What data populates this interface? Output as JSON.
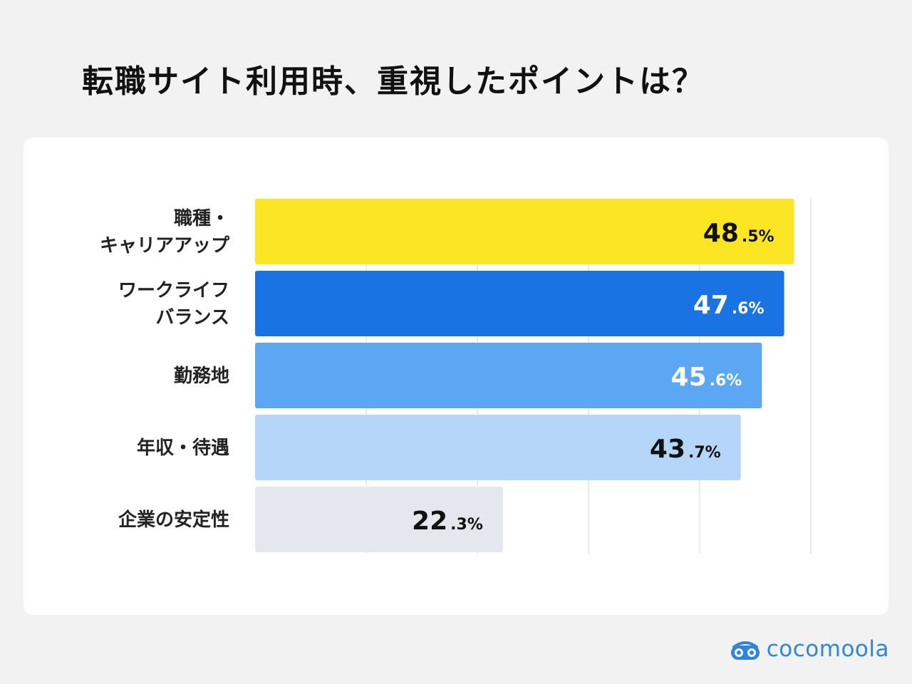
{
  "title": "転職サイト利用時、重視したポイントは？",
  "brand": {
    "name": "cocomoola",
    "icon": "cocomoola-logo-icon",
    "color": "#2f86d8"
  },
  "chart_data": {
    "type": "bar",
    "orientation": "horizontal",
    "categories": [
      [
        "職種・",
        "キャリアアップ"
      ],
      [
        "ワークライフ",
        "バランス"
      ],
      [
        "勤務地"
      ],
      [
        "年収・待遇"
      ],
      [
        "企業の安定性"
      ]
    ],
    "values": [
      48.5,
      47.6,
      45.6,
      43.7,
      22.3
    ],
    "value_labels": [
      {
        "int": "48",
        "dec": ".5%"
      },
      {
        "int": "47",
        "dec": ".6%"
      },
      {
        "int": "45",
        "dec": ".6%"
      },
      {
        "int": "43",
        "dec": ".7%"
      },
      {
        "int": "22",
        "dec": ".3%"
      }
    ],
    "bar_colors": [
      "#fce624",
      "#1a73e3",
      "#5ba7f3",
      "#b5d5f9",
      "#e4e8ee"
    ],
    "label_colors": [
      "#111111",
      "#ffffff",
      "#ffffff",
      "#111111",
      "#111111"
    ],
    "xlim": [
      0,
      50
    ],
    "grid": true,
    "gridline_values": [
      10,
      20,
      30,
      40,
      50
    ]
  }
}
